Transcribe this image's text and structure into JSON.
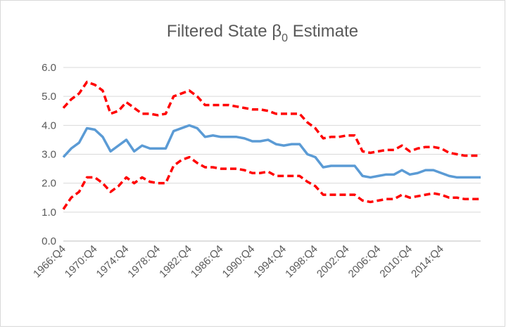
{
  "chart_data": {
    "type": "line",
    "title": {
      "text": "Filtered State β",
      "subscript": "0",
      "suffix": " Estimate"
    },
    "categories": [
      "1966:Q4",
      null,
      null,
      null,
      "1970:Q4",
      null,
      null,
      null,
      "1974:Q4",
      null,
      null,
      null,
      "1978:Q4",
      null,
      null,
      null,
      "1982:Q4",
      null,
      null,
      null,
      "1986:Q4",
      null,
      null,
      null,
      "1990:Q4",
      null,
      null,
      null,
      "1994:Q4",
      null,
      null,
      null,
      "1998:Q4",
      null,
      null,
      null,
      "2002:Q4",
      null,
      null,
      null,
      "2006:Q4",
      null,
      null,
      null,
      "2010:Q4",
      null,
      null,
      null,
      "2014:Q4",
      null,
      null,
      null,
      null,
      null
    ],
    "series": [
      {
        "color": "#ff0000",
        "dashed": true,
        "values": [
          4.6,
          4.9,
          5.1,
          5.5,
          5.4,
          5.2,
          4.4,
          4.5,
          4.8,
          4.6,
          4.4,
          4.4,
          4.35,
          4.4,
          5.0,
          5.1,
          5.2,
          5.0,
          4.7,
          4.7,
          4.7,
          4.7,
          4.65,
          4.6,
          4.55,
          4.55,
          4.5,
          4.4,
          4.4,
          4.4,
          4.4,
          4.1,
          3.9,
          3.55,
          3.6,
          3.6,
          3.65,
          3.65,
          3.1,
          3.05,
          3.1,
          3.15,
          3.15,
          3.3,
          3.1,
          3.2,
          3.25,
          3.25,
          3.2,
          3.05,
          3.0,
          2.95,
          2.95,
          2.95
        ]
      },
      {
        "color": "#ff0000",
        "dashed": true,
        "values": [
          1.1,
          1.5,
          1.7,
          2.2,
          2.2,
          2.0,
          1.7,
          1.9,
          2.2,
          2.0,
          2.2,
          2.05,
          2.0,
          2.0,
          2.6,
          2.8,
          2.9,
          2.7,
          2.55,
          2.55,
          2.5,
          2.5,
          2.5,
          2.45,
          2.35,
          2.35,
          2.4,
          2.25,
          2.25,
          2.25,
          2.25,
          2.05,
          1.9,
          1.6,
          1.6,
          1.6,
          1.6,
          1.6,
          1.4,
          1.35,
          1.4,
          1.45,
          1.45,
          1.6,
          1.5,
          1.55,
          1.6,
          1.65,
          1.6,
          1.5,
          1.5,
          1.45,
          1.45,
          1.45
        ]
      },
      {
        "color": "#5b9bd5",
        "dashed": false,
        "values": [
          2.9,
          3.2,
          3.4,
          3.9,
          3.85,
          3.6,
          3.1,
          3.3,
          3.5,
          3.1,
          3.3,
          3.2,
          3.2,
          3.2,
          3.8,
          3.9,
          4.0,
          3.9,
          3.6,
          3.65,
          3.6,
          3.6,
          3.6,
          3.55,
          3.45,
          3.45,
          3.5,
          3.35,
          3.3,
          3.35,
          3.35,
          3.0,
          2.9,
          2.55,
          2.6,
          2.6,
          2.6,
          2.6,
          2.25,
          2.2,
          2.25,
          2.3,
          2.3,
          2.45,
          2.3,
          2.35,
          2.45,
          2.45,
          2.35,
          2.25,
          2.2,
          2.2,
          2.2,
          2.2
        ]
      }
    ],
    "ylim": [
      0,
      6
    ],
    "yticks": [
      {
        "value": 0,
        "label": "0.0"
      },
      {
        "value": 1,
        "label": "1.0"
      },
      {
        "value": 2,
        "label": "2.0"
      },
      {
        "value": 3,
        "label": "3.0"
      },
      {
        "value": 4,
        "label": "4.0"
      },
      {
        "value": 5,
        "label": "5.0"
      },
      {
        "value": 6,
        "label": "6.0"
      }
    ],
    "grid": true
  }
}
